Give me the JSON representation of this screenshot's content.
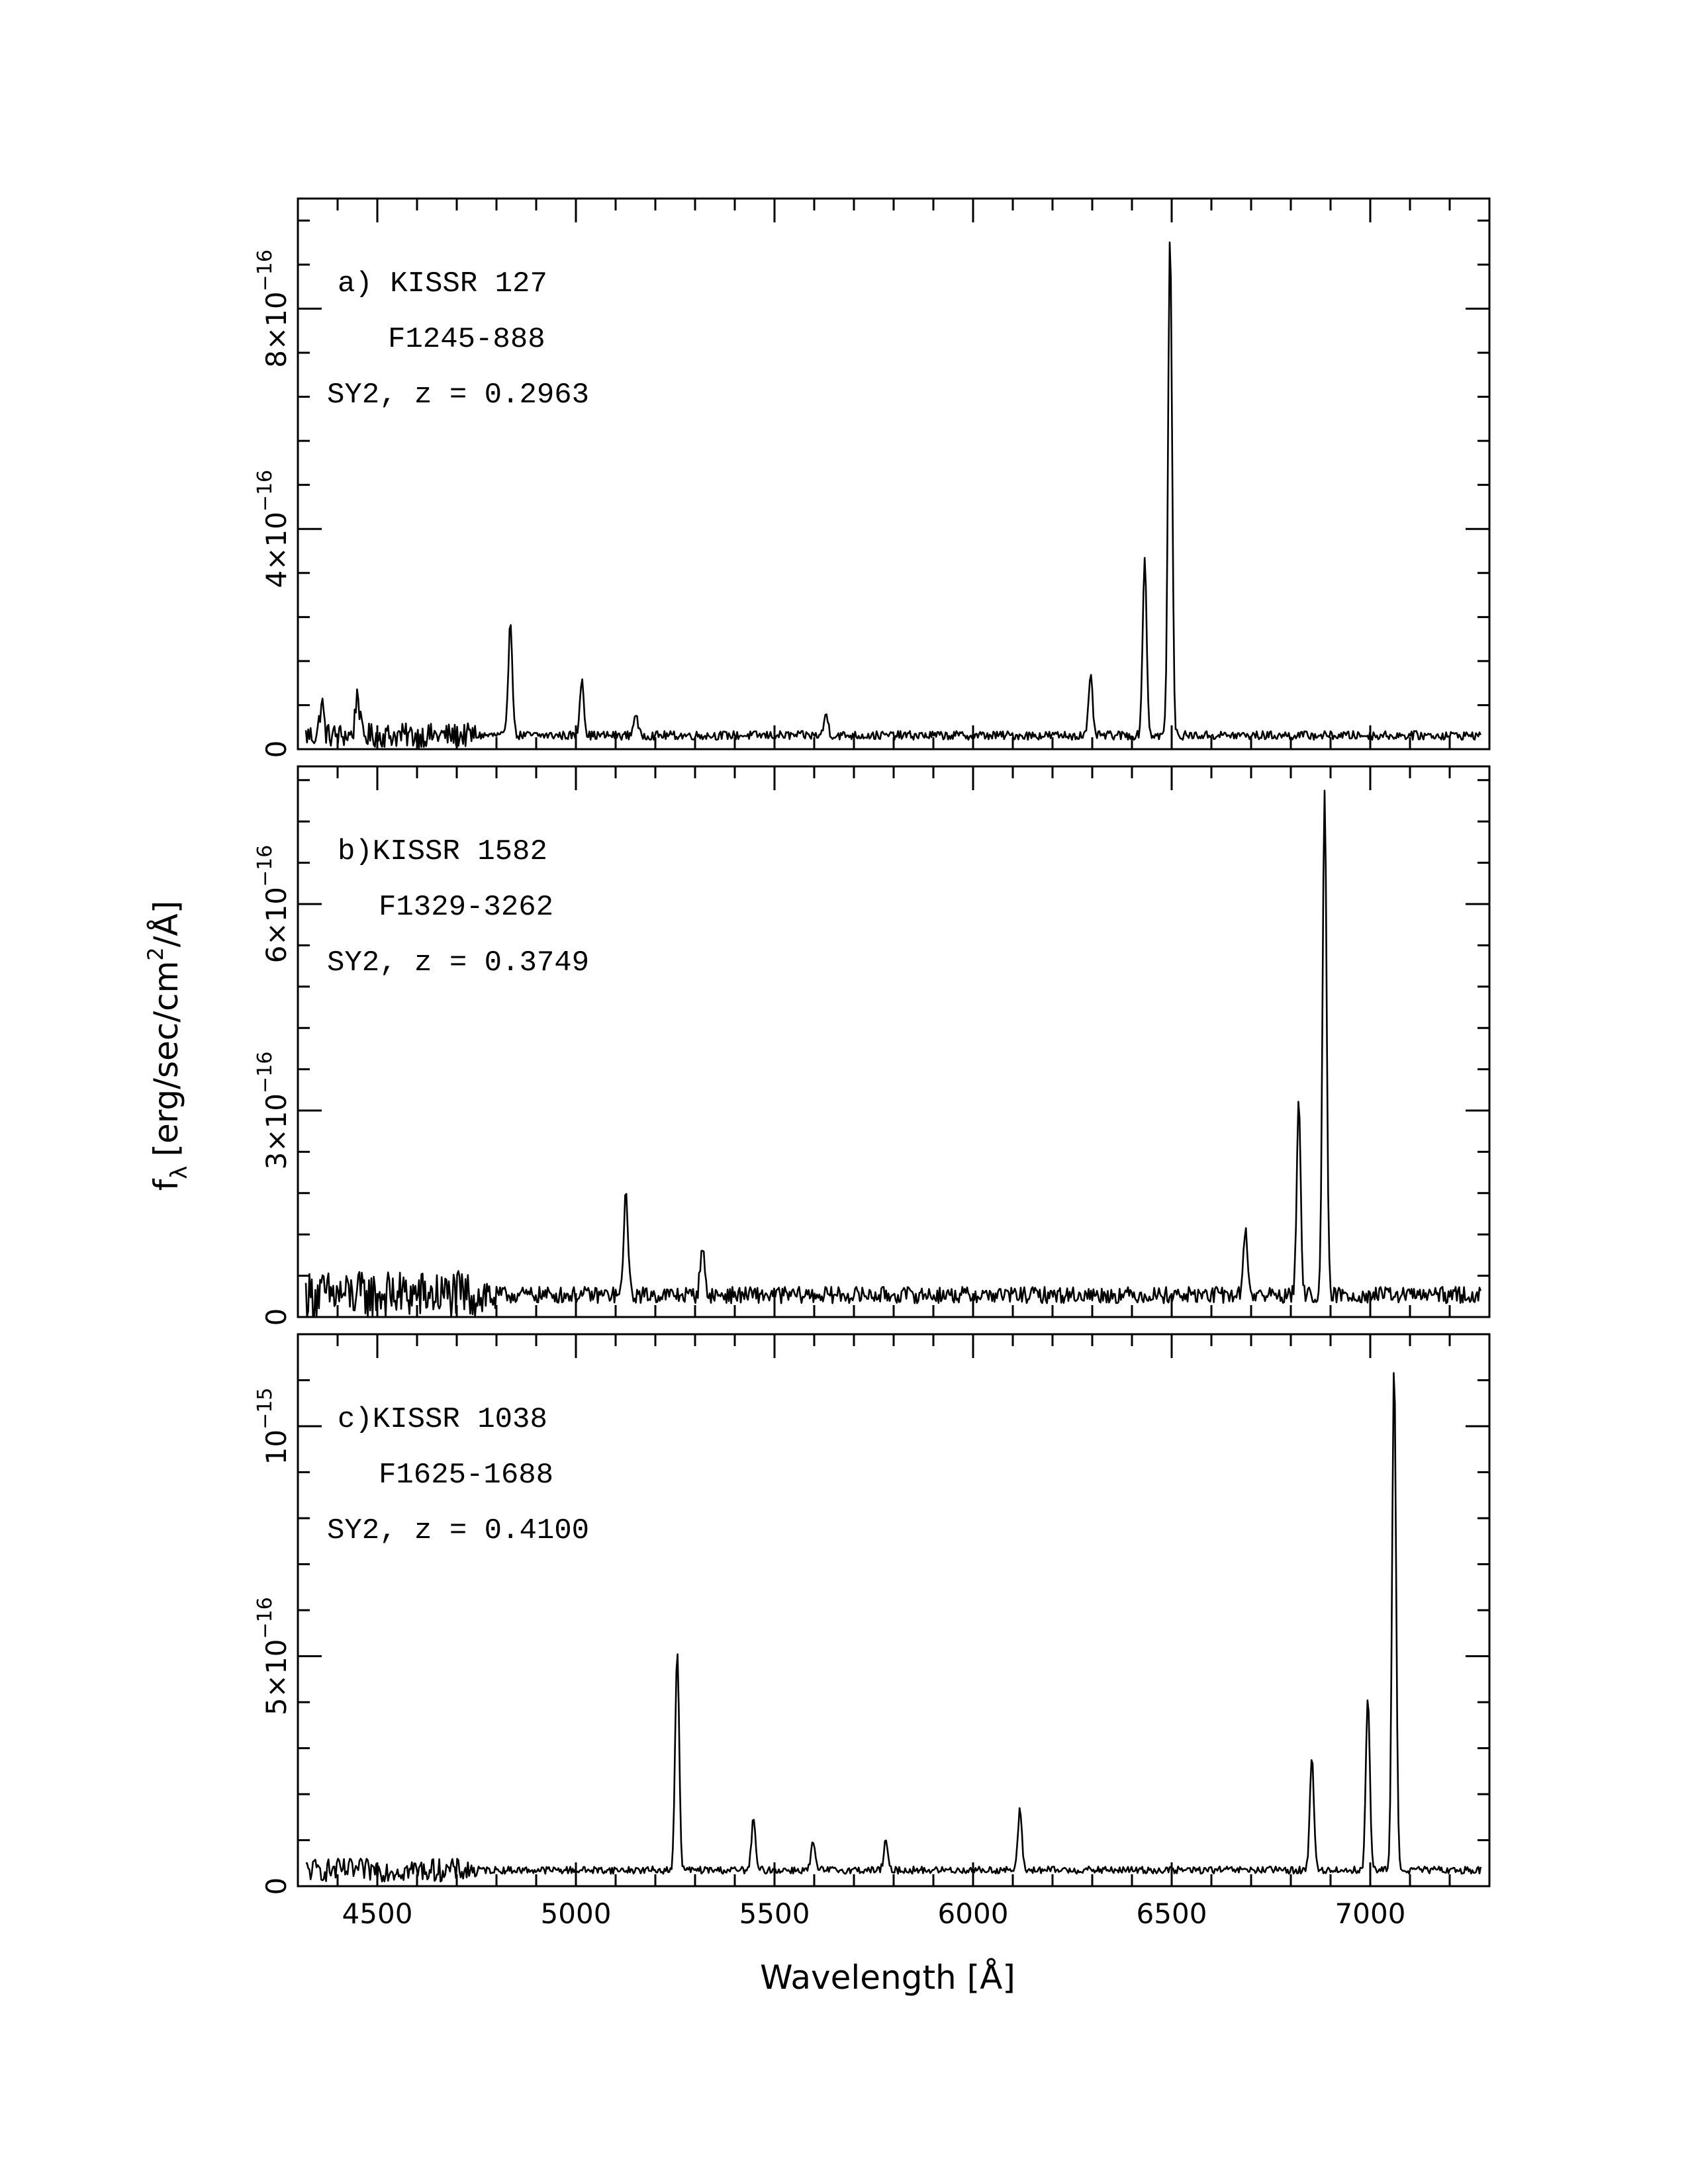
{
  "figure": {
    "xlabel": "Wavelength [Å]",
    "ylabel": "f",
    "ylabel_sub": "λ",
    "ylabel_units": "[erg/sec/cm",
    "ylabel_units_sup": "2",
    "ylabel_units_end": "/Å]"
  },
  "chart_data": [
    {
      "type": "line",
      "panel": "a",
      "annotation": [
        "a) KISSR 127",
        "F1245-888",
        "SY2, z = 0.2963"
      ],
      "xlim": [
        4300,
        7300
      ],
      "ylim": [
        0,
        1e-15
      ],
      "xticks": [
        4500,
        5000,
        5500,
        6000,
        6500,
        7000
      ],
      "yticks": [
        0,
        4e-16,
        8e-16
      ],
      "ytick_labels": [
        {
          "m": "0",
          "e": ""
        },
        {
          "m": "4×10",
          "e": "−16"
        },
        {
          "m": "8×10",
          "e": "−16"
        }
      ],
      "continuum": 2.5e-17,
      "noise": 8e-18,
      "noisy_end": 4750,
      "noisy_amp": 2.2e-17,
      "lines": [
        {
          "x": 4835,
          "peak": 2.1e-16
        },
        {
          "x": 5015,
          "peak": 1.05e-16
        },
        {
          "x": 4450,
          "peak": 8e-17
        },
        {
          "x": 4360,
          "peak": 6e-17
        },
        {
          "x": 5150,
          "peak": 4e-17
        },
        {
          "x": 5630,
          "peak": 4e-17
        },
        {
          "x": 6296,
          "peak": 1.05e-16
        },
        {
          "x": 6432,
          "peak": 3.2e-16
        },
        {
          "x": 6496,
          "peak": 9.07e-16
        }
      ]
    },
    {
      "type": "line",
      "panel": "b",
      "annotation": [
        "b)KISSR 1582",
        "F1329-3262",
        "SY2, z = 0.3749"
      ],
      "xlim": [
        4300,
        7300
      ],
      "ylim": [
        0,
        8e-16
      ],
      "xticks": [
        4500,
        5000,
        5500,
        6000,
        6500,
        7000
      ],
      "yticks": [
        0,
        3e-16,
        6e-16
      ],
      "ytick_labels": [
        {
          "m": "0",
          "e": ""
        },
        {
          "m": "3×10",
          "e": "−16"
        },
        {
          "m": "6×10",
          "e": "−16"
        }
      ],
      "continuum": 3.2e-17,
      "noise": 1.2e-17,
      "noisy_end": 4800,
      "noisy_amp": 3.5e-17,
      "lines": [
        {
          "x": 5126,
          "peak": 1.55e-16
        },
        {
          "x": 5318,
          "peak": 7.5e-17
        },
        {
          "x": 6686,
          "peak": 1e-16
        },
        {
          "x": 6820,
          "peak": 2.75e-16
        },
        {
          "x": 6885,
          "peak": 7.3e-16
        }
      ]
    },
    {
      "type": "line",
      "panel": "c",
      "annotation": [
        "c)KISSR 1038",
        "F1625-1688",
        "SY2, z = 0.4100"
      ],
      "xlim": [
        4300,
        7300
      ],
      "ylim": [
        0,
        1.2e-15
      ],
      "xticks": [
        4500,
        5000,
        5500,
        6000,
        6500,
        7000
      ],
      "yticks": [
        0,
        5e-16,
        1e-15
      ],
      "ytick_labels": [
        {
          "m": "0",
          "e": ""
        },
        {
          "m": "5×10",
          "e": "−16"
        },
        {
          "m": "10",
          "e": "−15"
        }
      ],
      "continuum": 3.5e-17,
      "noise": 8e-18,
      "noisy_end": 4750,
      "noisy_amp": 2.5e-17,
      "lines": [
        {
          "x": 5255,
          "peak": 4.75e-16
        },
        {
          "x": 5447,
          "peak": 1.1e-16
        },
        {
          "x": 5597,
          "peak": 6e-17
        },
        {
          "x": 5780,
          "peak": 6e-17
        },
        {
          "x": 6118,
          "peak": 1.3e-16
        },
        {
          "x": 6853,
          "peak": 2.5e-16
        },
        {
          "x": 6994,
          "peak": 3.75e-16
        },
        {
          "x": 7060,
          "peak": 1.1e-15
        }
      ]
    }
  ]
}
